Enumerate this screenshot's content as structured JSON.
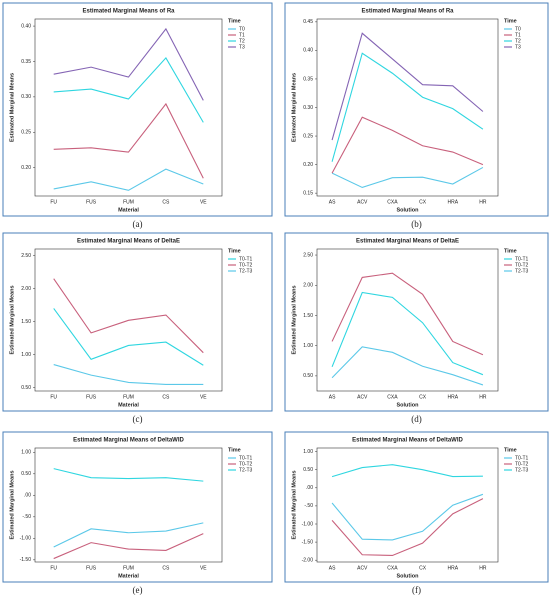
{
  "chart_data": [
    {
      "type": "line",
      "title": "Estimated Marginal Means of Ra",
      "panel_label": "(a)",
      "xlabel": "Material",
      "ylabel": "Estimated Marginal Means",
      "legend_title": "Time",
      "legend": "right",
      "categories": [
        "FU",
        "FUS",
        "FUM",
        "CS",
        "VE"
      ],
      "series": [
        {
          "name": "T0",
          "color": "#5bc8e8",
          "values": [
            0.17,
            0.18,
            0.168,
            0.198,
            0.177
          ]
        },
        {
          "name": "T1",
          "color": "#c8607c",
          "values": [
            0.226,
            0.228,
            0.222,
            0.29,
            0.185
          ]
        },
        {
          "name": "T2",
          "color": "#2fd6e0",
          "values": [
            0.307,
            0.311,
            0.297,
            0.355,
            0.264
          ]
        },
        {
          "name": "T3",
          "color": "#8464b4",
          "values": [
            0.332,
            0.342,
            0.328,
            0.396,
            0.295
          ]
        }
      ],
      "ylim": [
        0.16,
        0.41
      ],
      "yticks": [
        {
          "value": 0.2,
          "label": "0.20"
        },
        {
          "value": 0.25,
          "label": "0.25"
        },
        {
          "value": 0.3,
          "label": "0.30"
        },
        {
          "value": 0.35,
          "label": "0.35"
        },
        {
          "value": 0.4,
          "label": "0.40"
        }
      ]
    },
    {
      "type": "line",
      "title": "Estimated Marginal Means of Ra",
      "panel_label": "(b)",
      "xlabel": "Solution",
      "ylabel": "Estimated Marginal Means",
      "legend_title": "Time",
      "legend": "right",
      "categories": [
        "AS",
        "ACV",
        "CXA",
        "CX",
        "HRA",
        "HR"
      ],
      "series": [
        {
          "name": "T0",
          "color": "#5bc8e8",
          "values": [
            0.185,
            0.16,
            0.177,
            0.178,
            0.166,
            0.195
          ]
        },
        {
          "name": "T1",
          "color": "#c8607c",
          "values": [
            0.185,
            0.283,
            0.26,
            0.233,
            0.222,
            0.2
          ]
        },
        {
          "name": "T2",
          "color": "#2fd6e0",
          "values": [
            0.205,
            0.395,
            0.36,
            0.318,
            0.298,
            0.262
          ]
        },
        {
          "name": "T3",
          "color": "#8464b4",
          "values": [
            0.243,
            0.43,
            0.385,
            0.34,
            0.338,
            0.293
          ]
        }
      ],
      "ylim": [
        0.145,
        0.455
      ],
      "yticks": [
        {
          "value": 0.15,
          "label": "0.15"
        },
        {
          "value": 0.2,
          "label": "0.20"
        },
        {
          "value": 0.25,
          "label": "0.25"
        },
        {
          "value": 0.3,
          "label": "0.30"
        },
        {
          "value": 0.35,
          "label": "0.35"
        },
        {
          "value": 0.4,
          "label": "0.40"
        },
        {
          "value": 0.45,
          "label": "0.45"
        }
      ]
    },
    {
      "type": "line",
      "title": "Estimated Marginal Means of DeltaE",
      "panel_label": "(c)",
      "xlabel": "Material",
      "ylabel": "Estimated Marginal Means",
      "legend_title": "Time",
      "legend": "right",
      "categories": [
        "FU",
        "FUS",
        "FUM",
        "CS",
        "VE"
      ],
      "series": [
        {
          "name": "T0-T1",
          "color": "#2fd6e0",
          "values": [
            1.7,
            0.93,
            1.14,
            1.19,
            0.84
          ]
        },
        {
          "name": "T0-T2",
          "color": "#c8607c",
          "values": [
            2.15,
            1.33,
            1.52,
            1.6,
            1.03
          ]
        },
        {
          "name": "T2-T3",
          "color": "#5bc8e8",
          "values": [
            0.85,
            0.69,
            0.58,
            0.55,
            0.55
          ]
        }
      ],
      "ylim": [
        0.45,
        2.6
      ],
      "yticks": [
        {
          "value": 0.5,
          "label": "0.50"
        },
        {
          "value": 1,
          "label": "1.00"
        },
        {
          "value": 1.5,
          "label": "1.50"
        },
        {
          "value": 2,
          "label": "2.00"
        },
        {
          "value": 2.5,
          "label": "2.50"
        }
      ]
    },
    {
      "type": "line",
      "title": "Estimated Marginal Means of DeltaE",
      "panel_label": "(d)",
      "xlabel": "Solution",
      "ylabel": "Estimated Marginal Means",
      "legend_title": "Time",
      "legend": "right",
      "categories": [
        "AS",
        "ACV",
        "CXA",
        "CX",
        "HRA",
        "HR"
      ],
      "series": [
        {
          "name": "T0-T1",
          "color": "#2fd6e0",
          "values": [
            0.65,
            1.88,
            1.8,
            1.38,
            0.72,
            0.52
          ]
        },
        {
          "name": "T0-T2",
          "color": "#c8607c",
          "values": [
            1.07,
            2.13,
            2.2,
            1.85,
            1.07,
            0.85
          ]
        },
        {
          "name": "T2-T3",
          "color": "#5bc8e8",
          "values": [
            0.47,
            0.98,
            0.89,
            0.66,
            0.52,
            0.35
          ]
        }
      ],
      "ylim": [
        0.25,
        2.6
      ],
      "yticks": [
        {
          "value": 0.5,
          "label": "0.50"
        },
        {
          "value": 1,
          "label": "1.00"
        },
        {
          "value": 1.5,
          "label": "1.50"
        },
        {
          "value": 2,
          "label": "2.00"
        },
        {
          "value": 2.5,
          "label": "2.50"
        }
      ]
    },
    {
      "type": "line",
      "title": "Estimated Marginal Means of DeltaWID",
      "panel_label": "(e)",
      "xlabel": "Material",
      "ylabel": "Estimated Marginal Means",
      "legend_title": "Time",
      "legend": "right",
      "categories": [
        "FU",
        "FUS",
        "FUM",
        "CS",
        "VE"
      ],
      "series": [
        {
          "name": "T0-T1",
          "color": "#5bc8e8",
          "values": [
            -1.2,
            -0.78,
            -0.87,
            -0.83,
            -0.64
          ]
        },
        {
          "name": "T0-T2",
          "color": "#c8607c",
          "values": [
            -1.47,
            -1.1,
            -1.25,
            -1.28,
            -0.89
          ]
        },
        {
          "name": "T2-T3",
          "color": "#2fd6e0",
          "values": [
            0.62,
            0.41,
            0.39,
            0.41,
            0.33
          ]
        }
      ],
      "ylim": [
        -1.55,
        1.1
      ],
      "yticks": [
        {
          "value": -1.5,
          "label": "-1.50"
        },
        {
          "value": -1,
          "label": "-1.00"
        },
        {
          "value": -0.5,
          "label": "-.50"
        },
        {
          "value": 0,
          "label": ".00"
        },
        {
          "value": 0.5,
          "label": "0.50"
        },
        {
          "value": 1,
          "label": "1.00"
        }
      ]
    },
    {
      "type": "line",
      "title": "Estimated Marginal Means of DeltaWID",
      "panel_label": "(f)",
      "xlabel": "Solution",
      "ylabel": "Estimated Marginal Means",
      "legend_title": "Time",
      "legend": "right",
      "categories": [
        "AS",
        "ACV",
        "CXA",
        "CX",
        "HRA",
        "HR"
      ],
      "series": [
        {
          "name": "T0-T1",
          "color": "#5bc8e8",
          "values": [
            -0.42,
            -1.42,
            -1.44,
            -1.2,
            -0.48,
            -0.18
          ]
        },
        {
          "name": "T0-T2",
          "color": "#c8607c",
          "values": [
            -0.9,
            -1.85,
            -1.87,
            -1.53,
            -0.72,
            -0.3
          ]
        },
        {
          "name": "T2-T3",
          "color": "#2fd6e0",
          "values": [
            0.31,
            0.56,
            0.64,
            0.5,
            0.31,
            0.32
          ]
        }
      ],
      "ylim": [
        -2.05,
        1.1
      ],
      "yticks": [
        {
          "value": -2,
          "label": "-2.00"
        },
        {
          "value": -1.5,
          "label": "-1.50"
        },
        {
          "value": -1,
          "label": "-1.00"
        },
        {
          "value": -0.5,
          "label": "-.50"
        },
        {
          "value": 0,
          "label": ".00"
        },
        {
          "value": 0.5,
          "label": "0.50"
        },
        {
          "value": 1,
          "label": "1.00"
        }
      ]
    }
  ]
}
